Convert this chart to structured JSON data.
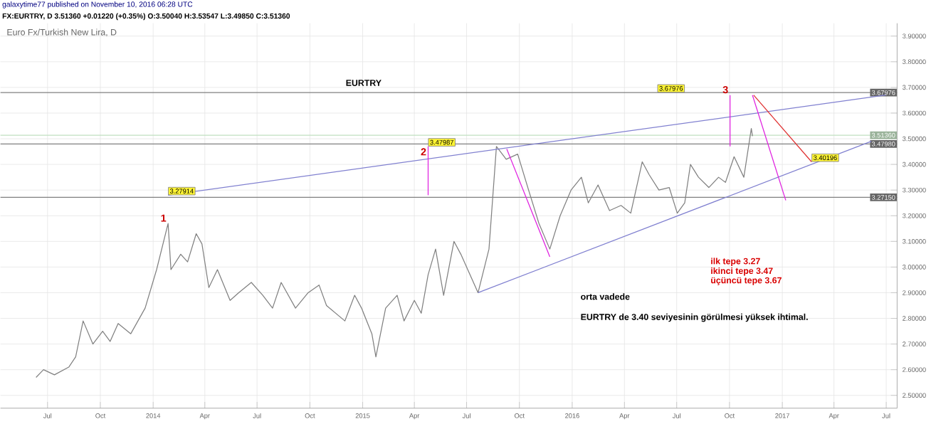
{
  "chart_data": {
    "type": "line",
    "title": "galaxytime77 published on November 10, 2016 06:28 UTC",
    "subtitle": "FX:EURTRY, D 3.51360 +0.01220 (+0.35%) O:3.50040 H:3.53547 L:3.49850 C:3.51360",
    "series": [
      {
        "color": "#808080",
        "x": [
          "2013-06-11",
          "2013-06-24",
          "2013-07-13",
          "2013-08-07",
          "2013-08-19",
          "2013-09-01",
          "2013-09-18",
          "2013-10-05",
          "2013-10-18",
          "2013-11-01",
          "2013-11-23",
          "2013-12-18",
          "2014-01-07",
          "2014-01-27",
          "2014-02-01",
          "2014-02-18",
          "2014-03-02",
          "2014-03-17",
          "2014-03-27",
          "2014-04-08",
          "2014-04-23",
          "2014-05-15",
          "2014-05-30",
          "2014-06-21",
          "2014-07-11",
          "2014-07-28",
          "2014-08-12",
          "2014-09-06",
          "2014-09-28",
          "2014-10-17",
          "2014-10-30",
          "2014-12-01",
          "2014-12-18",
          "2014-12-30",
          "2015-01-17",
          "2015-01-24",
          "2015-02-10",
          "2015-03-02",
          "2015-03-14",
          "2015-04-01",
          "2015-04-13",
          "2015-04-25",
          "2015-05-08",
          "2015-05-22",
          "2015-06-09",
          "2015-06-21",
          "2015-07-21",
          "2015-08-09",
          "2015-08-22",
          "2015-09-08",
          "2015-09-28",
          "2015-10-17",
          "2015-11-04",
          "2015-11-23",
          "2015-12-11",
          "2015-12-30",
          "2016-01-17",
          "2016-01-29",
          "2016-02-15",
          "2016-03-06",
          "2016-03-26",
          "2016-04-12",
          "2016-05-02",
          "2016-05-14",
          "2016-05-31",
          "2016-06-18",
          "2016-07-02",
          "2016-07-15",
          "2016-07-25",
          "2016-08-08",
          "2016-08-26",
          "2016-09-12",
          "2016-09-24",
          "2016-10-09",
          "2016-10-26",
          "2016-11-08",
          "2016-11-10"
        ],
        "values": [
          2.57,
          2.6,
          2.58,
          2.61,
          2.65,
          2.79,
          2.7,
          2.75,
          2.71,
          2.78,
          2.74,
          2.84,
          2.99,
          3.17,
          2.99,
          3.05,
          3.02,
          3.13,
          3.09,
          2.92,
          2.99,
          2.87,
          2.9,
          2.94,
          2.89,
          2.84,
          2.94,
          2.84,
          2.9,
          2.93,
          2.85,
          2.79,
          2.89,
          2.84,
          2.74,
          2.65,
          2.84,
          2.89,
          2.79,
          2.87,
          2.82,
          2.97,
          3.07,
          2.89,
          3.1,
          3.05,
          2.9,
          3.07,
          3.47,
          3.42,
          3.44,
          3.3,
          3.17,
          3.07,
          3.2,
          3.3,
          3.35,
          3.25,
          3.32,
          3.22,
          3.24,
          3.21,
          3.41,
          3.36,
          3.3,
          3.31,
          3.21,
          3.25,
          3.4,
          3.35,
          3.31,
          3.35,
          3.33,
          3.43,
          3.35,
          3.54,
          3.51
        ]
      },
      {
        "type": "line",
        "color": "#8080d0",
        "x": [
          "2014-01-27",
          "2017-06-30"
        ],
        "values": [
          3.28,
          3.67
        ]
      },
      {
        "type": "line",
        "color": "#8080d0",
        "x": [
          "2015-07-21",
          "2017-06-05"
        ],
        "values": [
          2.9,
          3.49
        ]
      },
      {
        "type": "line",
        "color": "#e020e0",
        "x": [
          "2015-04-25",
          "2015-04-25"
        ],
        "values": [
          3.28,
          3.47
        ]
      },
      {
        "type": "line",
        "color": "#e020e0",
        "x": [
          "2016-10-02",
          "2016-10-02"
        ],
        "values": [
          3.47,
          3.67
        ]
      },
      {
        "type": "line",
        "color": "#e020e0",
        "x": [
          "2015-09-09",
          "2015-11-23"
        ],
        "values": [
          3.46,
          3.04
        ]
      },
      {
        "type": "line",
        "color": "#e020e0",
        "x": [
          "2016-11-10",
          "2017-01-07"
        ],
        "values": [
          3.67,
          3.26
        ]
      },
      {
        "type": "line",
        "color": "#e03030",
        "x": [
          "2016-11-12",
          "2017-02-21"
        ],
        "values": [
          3.67,
          3.41
        ]
      }
    ],
    "xlim": [
      "2013-04-10",
      "2017-07-20"
    ],
    "xticks": [
      {
        "value": "2013-07-01",
        "label": "Jul"
      },
      {
        "value": "2013-10-01",
        "label": "Oct"
      },
      {
        "value": "2014-01-01",
        "label": "2014"
      },
      {
        "value": "2014-04-01",
        "label": "Apr"
      },
      {
        "value": "2014-07-01",
        "label": "Jul"
      },
      {
        "value": "2014-10-01",
        "label": "Oct"
      },
      {
        "value": "2015-01-01",
        "label": "2015"
      },
      {
        "value": "2015-04-01",
        "label": "Apr"
      },
      {
        "value": "2015-07-01",
        "label": "Jul"
      },
      {
        "value": "2015-10-01",
        "label": "Oct"
      },
      {
        "value": "2016-01-01",
        "label": "2016"
      },
      {
        "value": "2016-04-01",
        "label": "Apr"
      },
      {
        "value": "2016-07-01",
        "label": "Jul"
      },
      {
        "value": "2016-10-01",
        "label": "Oct"
      },
      {
        "value": "2017-01-01",
        "label": "2017"
      },
      {
        "value": "2017-04-01",
        "label": "Apr"
      },
      {
        "value": "2017-07-01",
        "label": "Jul"
      }
    ],
    "ylim": [
      2.45,
      3.95
    ],
    "yticks": [
      {
        "value": 2.5,
        "label": "2.50000"
      },
      {
        "value": 2.6,
        "label": "2.60000"
      },
      {
        "value": 2.7,
        "label": "2.70000"
      },
      {
        "value": 2.8,
        "label": "2.80000"
      },
      {
        "value": 2.9,
        "label": "2.90000"
      },
      {
        "value": 3.0,
        "label": "3.00000"
      },
      {
        "value": 3.1,
        "label": "3.10000"
      },
      {
        "value": 3.2,
        "label": "3.20000"
      },
      {
        "value": 3.3,
        "label": "3.30000"
      },
      {
        "value": 3.4,
        "label": "3.40000"
      },
      {
        "value": 3.5,
        "label": "3.50000"
      },
      {
        "value": 3.6,
        "label": "3.60000"
      },
      {
        "value": 3.7,
        "label": "3.70000"
      },
      {
        "value": 3.8,
        "label": "3.80000"
      },
      {
        "value": 3.9,
        "label": "3.90000"
      }
    ],
    "grid": true,
    "ref_lines": [
      {
        "axis": "y",
        "value": 3.67976,
        "label": "3.67976",
        "color": "#808080"
      },
      {
        "axis": "y",
        "value": 3.4798,
        "label": "3.47980",
        "color": "#808080"
      },
      {
        "axis": "y",
        "value": 3.2715,
        "label": "3.27150",
        "color": "#808080"
      },
      {
        "axis": "y",
        "value": 3.5136,
        "label": "3.51360",
        "color": "#c0e0c0"
      }
    ],
    "annotations": [
      "Euro Fx/Turkish New Lira, D",
      "EURTRY",
      "ilk tepe 3.27",
      "ikinci tepe  3.47",
      "üçüncü tepe  3.67",
      "orta vadede",
      "EURTRY  de 3.40 seviyesinin görülmesi yüksek ihtimal.",
      {
        "text": "1",
        "x": "2014-01-27",
        "y": 3.17
      },
      {
        "text": "2",
        "x": "2015-04-25",
        "y": 3.47
      },
      {
        "text": "3",
        "x": "2016-10-02",
        "y": 3.67
      },
      {
        "text": "3.27914",
        "x": "2014-01-27",
        "y": 3.28
      },
      {
        "text": "3.47987",
        "x": "2015-04-25",
        "y": 3.47
      },
      {
        "text": "3.67976",
        "x": "2016-07-15",
        "y": 3.68
      },
      {
        "text": "3.40196",
        "x": "2017-02-21",
        "y": 3.41
      }
    ]
  }
}
